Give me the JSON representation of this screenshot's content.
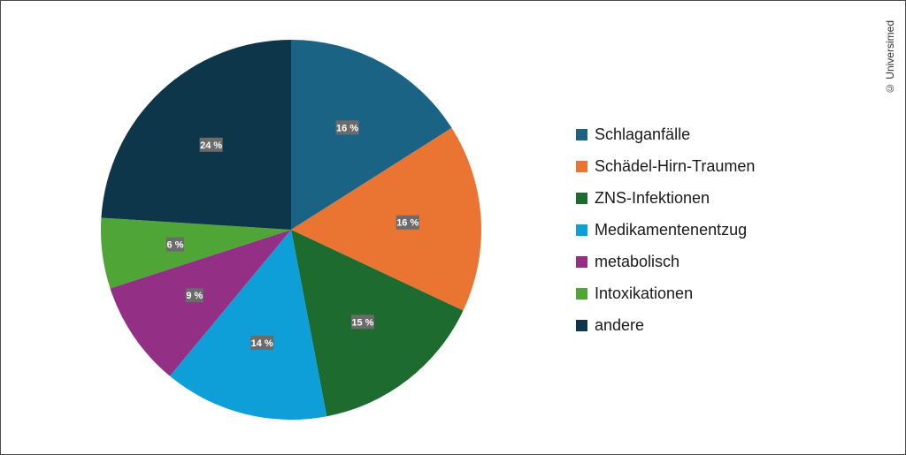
{
  "chart_data": {
    "type": "pie",
    "title": "",
    "unit": "%",
    "legend_position": "right",
    "slices": [
      {
        "name": "Schlaganfälle",
        "value": 16,
        "label": "16 %",
        "color": "#1b6385"
      },
      {
        "name": "Schädel-Hirn-Traumen",
        "value": 16,
        "label": "16 %",
        "color": "#ea7431"
      },
      {
        "name": "ZNS-Infektionen",
        "value": 15,
        "label": "15 %",
        "color": "#1e6b30"
      },
      {
        "name": "Medikamentenentzug",
        "value": 14,
        "label": "14 %",
        "color": "#0f9fd8"
      },
      {
        "name": "metabolisch",
        "value": 9,
        "label": "9 %",
        "color": "#942f86"
      },
      {
        "name": "Intoxikationen",
        "value": 6,
        "label": "6 %",
        "color": "#4fa637"
      },
      {
        "name": "andere",
        "value": 24,
        "label": "24 %",
        "color": "#0e364b"
      }
    ]
  },
  "copyright": "© Universimed"
}
